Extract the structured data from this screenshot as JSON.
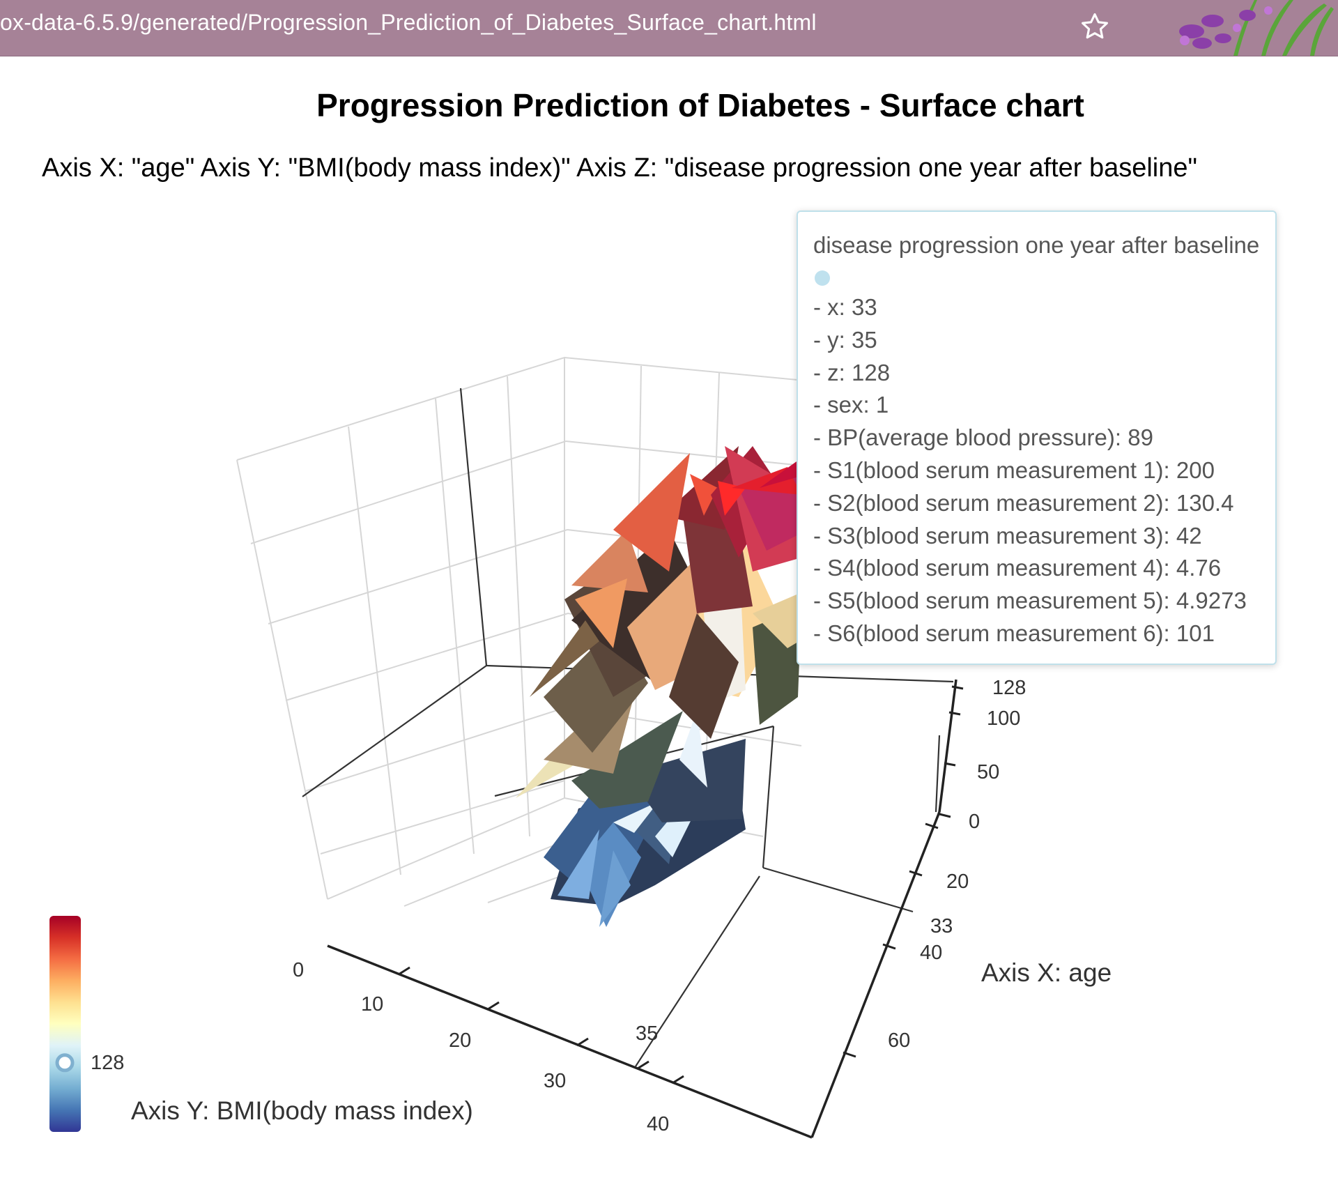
{
  "browser": {
    "url": "ox-data-6.5.9/generated/Progression_Prediction_of_Diabetes_Surface_chart.html"
  },
  "page": {
    "title": "Progression Prediction of Diabetes - Surface chart",
    "axis_caption": "Axis X: \"age\" Axis Y: \"BMI(body mass index)\" Axis Z: \"disease progression one year after baseline\""
  },
  "tooltip": {
    "title": "disease progression one year after baseline",
    "lines": [
      "- x: 33",
      "- y: 35",
      "- z: 128",
      "- sex: 1",
      "- BP(average blood pressure): 89",
      "- S1(blood serum measurement 1): 200",
      "- S2(blood serum measurement 2): 130.4",
      "- S3(blood serum measurement 3): 42",
      "- S4(blood serum measurement 4): 4.76",
      "- S5(blood serum measurement 5): 4.9273",
      "- S6(blood serum measurement 6): 101"
    ],
    "dot_color": "#bfe1ee"
  },
  "chart_data": {
    "type": "surface",
    "title": "Progression Prediction of Diabetes - Surface chart",
    "xlabel": "Axis X: age",
    "ylabel": "Axis Y: BMI(body mass index)",
    "zlabel": "disease progression one year after baseline",
    "x_ticks": [
      "20",
      "33",
      "40",
      "60"
    ],
    "y_ticks": [
      "0",
      "10",
      "20",
      "30",
      "35",
      "40"
    ],
    "z_ticks": [
      "0",
      "50",
      "100",
      "128"
    ],
    "highlighted_point": {
      "x": 33,
      "y": 35,
      "z": 128
    },
    "colorbar": {
      "label": "128",
      "value": 128,
      "colors": [
        "#313695",
        "#4575b4",
        "#74add1",
        "#abd9e9",
        "#e0f3f8",
        "#ffffbf",
        "#fee090",
        "#fdae61",
        "#f46d43",
        "#d73027",
        "#a50026"
      ],
      "marker_fraction": 0.32
    },
    "grid": true
  }
}
